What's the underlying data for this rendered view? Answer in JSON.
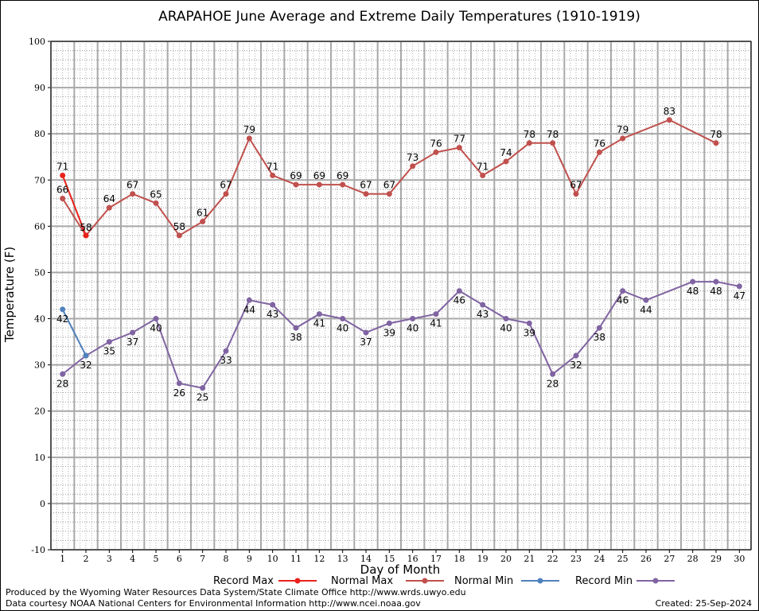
{
  "chart_data": {
    "type": "line",
    "title": "ARAPAHOE June Average and Extreme Daily Temperatures (1910-1919)",
    "xlabel": "Day of Month",
    "ylabel": "Temperature (F)",
    "xlim": [
      1,
      30
    ],
    "ylim": [
      -10,
      100
    ],
    "yticks": [
      -10,
      0,
      10,
      20,
      30,
      40,
      50,
      60,
      70,
      80,
      90,
      100
    ],
    "x": [
      1,
      2,
      3,
      4,
      5,
      6,
      7,
      8,
      9,
      10,
      11,
      12,
      13,
      14,
      15,
      16,
      17,
      18,
      19,
      20,
      21,
      22,
      23,
      24,
      25,
      26,
      27,
      28,
      29,
      30
    ],
    "grid": true,
    "legend_position": "bottom",
    "series": [
      {
        "name": "Record Max",
        "color": "#e8221b",
        "points": [
          [
            1,
            71
          ],
          [
            2,
            58
          ]
        ],
        "labels": [
          "71",
          "58"
        ]
      },
      {
        "name": "Normal Max",
        "color": "#c0504d",
        "points": [
          [
            1,
            66
          ],
          [
            2,
            58
          ],
          [
            3,
            64
          ],
          [
            4,
            67
          ],
          [
            5,
            65
          ],
          [
            6,
            58
          ],
          [
            7,
            61
          ],
          [
            8,
            67
          ],
          [
            9,
            79
          ],
          [
            10,
            71
          ],
          [
            11,
            69
          ],
          [
            12,
            69
          ],
          [
            13,
            69
          ],
          [
            14,
            67
          ],
          [
            15,
            67
          ],
          [
            16,
            73
          ],
          [
            17,
            76
          ],
          [
            18,
            77
          ],
          [
            19,
            71
          ],
          [
            20,
            74
          ],
          [
            21,
            78
          ],
          [
            22,
            78
          ],
          [
            23,
            67
          ],
          [
            24,
            76
          ],
          [
            25,
            79
          ],
          [
            27,
            83
          ],
          [
            29,
            78
          ]
        ],
        "labels": [
          "66",
          "58",
          "64",
          "67",
          "65",
          "58",
          "61",
          "67",
          "79",
          "71",
          "69",
          "69",
          "69",
          "67",
          "67",
          "73",
          "76",
          "77",
          "71",
          "74",
          "78",
          "78",
          "67",
          "76",
          "79",
          "83",
          "78"
        ]
      },
      {
        "name": "Normal Min",
        "color": "#4f81bd",
        "points": [
          [
            1,
            42
          ],
          [
            2,
            32
          ]
        ],
        "labels": [
          "42",
          "32"
        ]
      },
      {
        "name": "Record Min",
        "color": "#8064a2",
        "points": [
          [
            1,
            28
          ],
          [
            2,
            32
          ],
          [
            3,
            35
          ],
          [
            4,
            37
          ],
          [
            5,
            40
          ],
          [
            6,
            26
          ],
          [
            7,
            25
          ],
          [
            8,
            33
          ],
          [
            9,
            44
          ],
          [
            10,
            43
          ],
          [
            11,
            38
          ],
          [
            12,
            41
          ],
          [
            13,
            40
          ],
          [
            14,
            37
          ],
          [
            15,
            39
          ],
          [
            16,
            40
          ],
          [
            17,
            41
          ],
          [
            18,
            46
          ],
          [
            19,
            43
          ],
          [
            20,
            40
          ],
          [
            21,
            39
          ],
          [
            22,
            28
          ],
          [
            23,
            32
          ],
          [
            24,
            38
          ],
          [
            25,
            46
          ],
          [
            26,
            44
          ],
          [
            28,
            48
          ],
          [
            29,
            48
          ],
          [
            30,
            47
          ]
        ],
        "labels": [
          "28",
          "32",
          "35",
          "37",
          "40",
          "26",
          "25",
          "33",
          "44",
          "43",
          "38",
          "41",
          "40",
          "37",
          "39",
          "40",
          "41",
          "46",
          "43",
          "40",
          "39",
          "28",
          "32",
          "38",
          "46",
          "44",
          "48",
          "48",
          "47"
        ]
      }
    ]
  },
  "footer": {
    "produced_by": "Produced by the Wyoming Water Resources Data System/State Climate Office http://www.wrds.uwyo.edu",
    "courtesy": "Data courtesy NOAA National Centers for Environmental Information http://www.ncei.noaa.gov",
    "created": "Created:  25-Sep-2024"
  }
}
